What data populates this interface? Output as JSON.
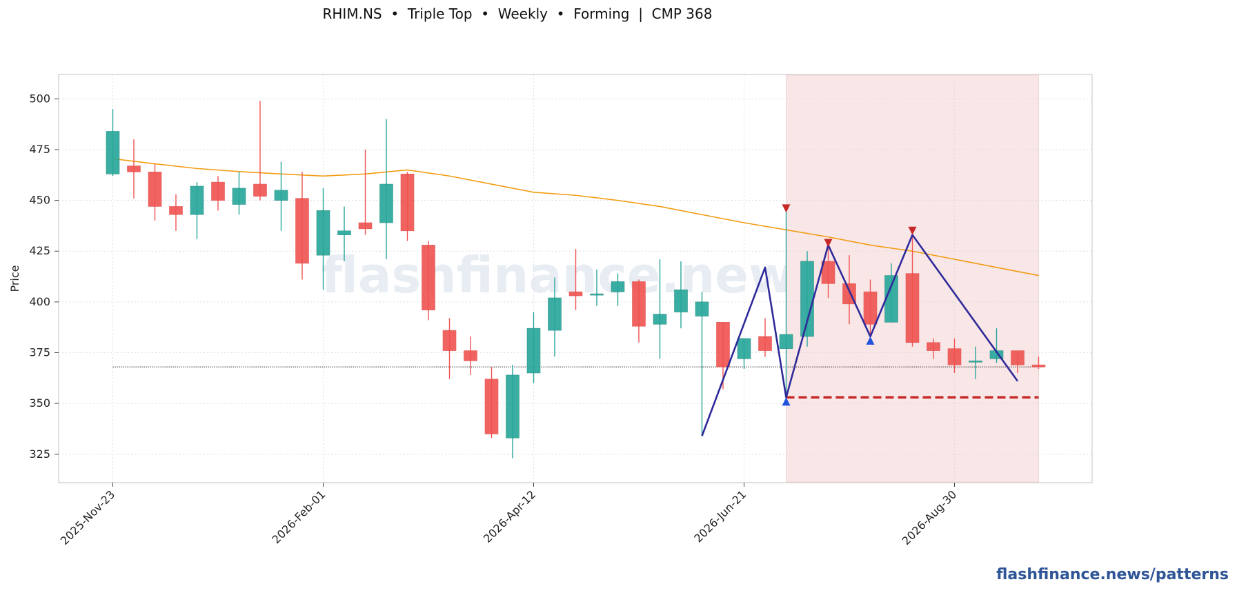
{
  "header": {
    "title": "RHIM.NS  •  Triple Top  •  Weekly  •  Forming  |  CMP 368"
  },
  "watermark": "flashfinance.news",
  "brand_footer": "flashfinance.news/patterns",
  "colors": {
    "up": "#26a69a",
    "down": "#ef5350",
    "ma": "#f39c12",
    "pattern_line": "#2e2a9a",
    "neckline": "#c62828",
    "cmp_line": "#333333",
    "peak_marker": "#c62828",
    "trough_marker": "#2255dd",
    "zone_fill": "#f9e6e6",
    "watermark": "#e8ecf3",
    "brand": "#2f5597"
  },
  "chart_data": {
    "type": "candlestick",
    "title": "RHIM.NS  •  Triple Top  •  Weekly  •  Forming  |  CMP 368",
    "ylabel": "Price",
    "xlabel": "",
    "ylim": [
      311,
      512
    ],
    "yticks": [
      325,
      350,
      375,
      400,
      425,
      450,
      475,
      500
    ],
    "xtick_labels": [
      "2025-Nov-23",
      "2026-Feb-01",
      "2026-Apr-12",
      "2026-Jun-21",
      "2026-Aug-30"
    ],
    "xtick_index": [
      0,
      10,
      20,
      30,
      40
    ],
    "grid": true,
    "candles": [
      {
        "date": "2025-Nov-23",
        "o": 463,
        "h": 495,
        "l": 462,
        "c": 484
      },
      {
        "date": "2025-Nov-30",
        "o": 467,
        "h": 480,
        "l": 451,
        "c": 464
      },
      {
        "date": "2025-Dec-07",
        "o": 464,
        "h": 468,
        "l": 440,
        "c": 447
      },
      {
        "date": "2025-Dec-14",
        "o": 447,
        "h": 453,
        "l": 435,
        "c": 443
      },
      {
        "date": "2025-Dec-21",
        "o": 443,
        "h": 459,
        "l": 431,
        "c": 457
      },
      {
        "date": "2025-Dec-28",
        "o": 459,
        "h": 462,
        "l": 445,
        "c": 450
      },
      {
        "date": "2026-Jan-04",
        "o": 448,
        "h": 464,
        "l": 443,
        "c": 456
      },
      {
        "date": "2026-Jan-11",
        "o": 458,
        "h": 499,
        "l": 450,
        "c": 452
      },
      {
        "date": "2026-Jan-18",
        "o": 450,
        "h": 469,
        "l": 435,
        "c": 455
      },
      {
        "date": "2026-Jan-25",
        "o": 451,
        "h": 464,
        "l": 411,
        "c": 419
      },
      {
        "date": "2026-Feb-01",
        "o": 423,
        "h": 456,
        "l": 406,
        "c": 445
      },
      {
        "date": "2026-Feb-08",
        "o": 433,
        "h": 447,
        "l": 420,
        "c": 435
      },
      {
        "date": "2026-Feb-15",
        "o": 439,
        "h": 475,
        "l": 433,
        "c": 436
      },
      {
        "date": "2026-Feb-22",
        "o": 439,
        "h": 490,
        "l": 421,
        "c": 458
      },
      {
        "date": "2026-Mar-01",
        "o": 463,
        "h": 464,
        "l": 430,
        "c": 435
      },
      {
        "date": "2026-Mar-08",
        "o": 428,
        "h": 430,
        "l": 391,
        "c": 396
      },
      {
        "date": "2026-Mar-15",
        "o": 386,
        "h": 392,
        "l": 362,
        "c": 376
      },
      {
        "date": "2026-Mar-22",
        "o": 376,
        "h": 383,
        "l": 364,
        "c": 371
      },
      {
        "date": "2026-Mar-29",
        "o": 362,
        "h": 368,
        "l": 333,
        "c": 335
      },
      {
        "date": "2026-Apr-05",
        "o": 333,
        "h": 369,
        "l": 323,
        "c": 364
      },
      {
        "date": "2026-Apr-12",
        "o": 365,
        "h": 395,
        "l": 360,
        "c": 387
      },
      {
        "date": "2026-Apr-19",
        "o": 386,
        "h": 412,
        "l": 373,
        "c": 402
      },
      {
        "date": "2026-Apr-26",
        "o": 405,
        "h": 426,
        "l": 396,
        "c": 403
      },
      {
        "date": "2026-May-03",
        "o": 404,
        "h": 416,
        "l": 398,
        "c": 404
      },
      {
        "date": "2026-May-10",
        "o": 405,
        "h": 414,
        "l": 398,
        "c": 410
      },
      {
        "date": "2026-May-17",
        "o": 410,
        "h": 411,
        "l": 380,
        "c": 388
      },
      {
        "date": "2026-May-24",
        "o": 389,
        "h": 421,
        "l": 372,
        "c": 394
      },
      {
        "date": "2026-May-31",
        "o": 395,
        "h": 420,
        "l": 387,
        "c": 406
      },
      {
        "date": "2026-Jun-07",
        "o": 393,
        "h": 405,
        "l": 334,
        "c": 400
      },
      {
        "date": "2026-Jun-14",
        "o": 390,
        "h": 390,
        "l": 357,
        "c": 368
      },
      {
        "date": "2026-Jun-21",
        "o": 372,
        "h": 382,
        "l": 367,
        "c": 382
      },
      {
        "date": "2026-Jun-28",
        "o": 383,
        "h": 392,
        "l": 373,
        "c": 376
      },
      {
        "date": "2026-Jul-05",
        "o": 377,
        "h": 445,
        "l": 353,
        "c": 384
      },
      {
        "date": "2026-Jul-12",
        "o": 383,
        "h": 425,
        "l": 378,
        "c": 420
      },
      {
        "date": "2026-Jul-19",
        "o": 420,
        "h": 428,
        "l": 402,
        "c": 409
      },
      {
        "date": "2026-Jul-26",
        "o": 409,
        "h": 423,
        "l": 389,
        "c": 399
      },
      {
        "date": "2026-Aug-02",
        "o": 405,
        "h": 411,
        "l": 384,
        "c": 389
      },
      {
        "date": "2026-Aug-09",
        "o": 390,
        "h": 419,
        "l": 390,
        "c": 413
      },
      {
        "date": "2026-Aug-16",
        "o": 414,
        "h": 432,
        "l": 378,
        "c": 380
      },
      {
        "date": "2026-Aug-23",
        "o": 380,
        "h": 382,
        "l": 372,
        "c": 376
      },
      {
        "date": "2026-Aug-30",
        "o": 377,
        "h": 382,
        "l": 365,
        "c": 369
      },
      {
        "date": "2026-Sep-06",
        "o": 371,
        "h": 378,
        "l": 362,
        "c": 371
      },
      {
        "date": "2026-Sep-13",
        "o": 372,
        "h": 387,
        "l": 370,
        "c": 376
      },
      {
        "date": "2026-Sep-20",
        "o": 376,
        "h": 376,
        "l": 365,
        "c": 369
      },
      {
        "date": "2026-Sep-27",
        "o": 369,
        "h": 373,
        "l": 367,
        "c": 368
      }
    ],
    "moving_average": [
      {
        "i": 0,
        "v": 470.5
      },
      {
        "i": 2,
        "v": 468
      },
      {
        "i": 4,
        "v": 465.7
      },
      {
        "i": 6,
        "v": 464.2
      },
      {
        "i": 8,
        "v": 463
      },
      {
        "i": 10,
        "v": 462
      },
      {
        "i": 12,
        "v": 463
      },
      {
        "i": 14,
        "v": 465
      },
      {
        "i": 16,
        "v": 462
      },
      {
        "i": 18,
        "v": 458
      },
      {
        "i": 20,
        "v": 454
      },
      {
        "i": 22,
        "v": 452.5
      },
      {
        "i": 24,
        "v": 450
      },
      {
        "i": 26,
        "v": 447
      },
      {
        "i": 28,
        "v": 443
      },
      {
        "i": 30,
        "v": 439
      },
      {
        "i": 32,
        "v": 435.5
      },
      {
        "i": 34,
        "v": 432
      },
      {
        "i": 36,
        "v": 428
      },
      {
        "i": 38,
        "v": 425
      },
      {
        "i": 40,
        "v": 421
      },
      {
        "i": 42,
        "v": 417
      },
      {
        "i": 44,
        "v": 413
      }
    ],
    "cmp": 368,
    "neckline": {
      "value": 353,
      "from_index": 32,
      "to_index": 44
    },
    "pattern_zone": {
      "from_index": 32,
      "to_index": 44
    },
    "pattern_path": [
      {
        "i": 28,
        "v": 334
      },
      {
        "i": 31,
        "v": 417
      },
      {
        "i": 32,
        "v": 353
      },
      {
        "i": 34,
        "v": 428
      },
      {
        "i": 36,
        "v": 383
      },
      {
        "i": 38,
        "v": 433
      },
      {
        "i": 43,
        "v": 361
      }
    ],
    "peak_markers": [
      {
        "i": 32,
        "v": 446
      },
      {
        "i": 34,
        "v": 429
      },
      {
        "i": 38,
        "v": 435
      }
    ],
    "trough_markers": [
      {
        "i": 32,
        "v": 351
      },
      {
        "i": 36,
        "v": 381
      }
    ]
  }
}
